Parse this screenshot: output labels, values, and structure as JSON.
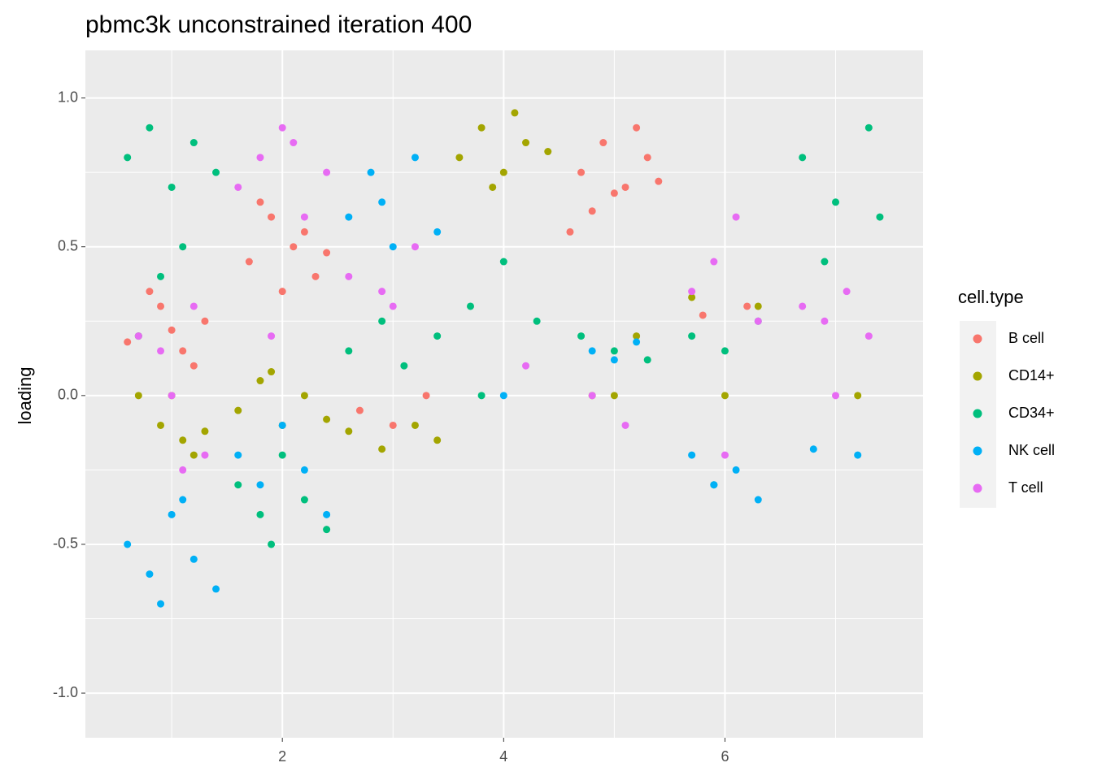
{
  "chart_data": {
    "type": "scatter",
    "title": "pbmc3k unconstrained iteration 400",
    "y_label": "loading",
    "legend_title": "cell.type",
    "xlim": [
      0.22,
      7.79
    ],
    "xticks": [
      2,
      4,
      6
    ],
    "ylim": [
      -1.15,
      1.16
    ],
    "yticks": [
      {
        "value": 1,
        "label": "1.0"
      },
      {
        "value": 0.5,
        "label": "0.5"
      },
      {
        "value": 0,
        "label": "0.0"
      },
      {
        "value": -0.5,
        "label": "-0.5"
      },
      {
        "value": -1,
        "label": "-1.0"
      }
    ],
    "grid": true,
    "legend": "right",
    "series": [
      {
        "name": "B cell",
        "color": "#F8766D",
        "x": [
          0.7,
          0.9,
          1.1,
          1.3,
          0.8,
          1.2,
          1.0,
          0.6,
          1.7,
          1.9,
          2.1,
          2.3,
          1.8,
          2.2,
          2.0,
          2.4,
          2.7,
          3.0,
          3.3,
          4.7,
          4.9,
          5.1,
          5.3,
          4.8,
          5.2,
          5.0,
          4.6,
          5.4,
          6.2,
          5.8
        ],
        "values": [
          0.2,
          0.3,
          0.15,
          0.25,
          0.35,
          0.1,
          0.22,
          0.18,
          0.45,
          0.6,
          0.5,
          0.4,
          0.65,
          0.55,
          0.35,
          0.48,
          -0.05,
          -0.1,
          0,
          0.75,
          0.85,
          0.7,
          0.8,
          0.62,
          0.9,
          0.68,
          0.55,
          0.72,
          0.3,
          0.27
        ]
      },
      {
        "name": "CD14+",
        "color": "#A3A500",
        "x": [
          0.7,
          0.9,
          1.1,
          1.3,
          1.0,
          1.2,
          1.6,
          1.8,
          2.0,
          2.2,
          2.4,
          1.9,
          2.6,
          2.9,
          3.2,
          3.4,
          3.6,
          3.8,
          4.0,
          4.2,
          4.4,
          3.9,
          4.1,
          4.8,
          5.2,
          5.0,
          5.7,
          6.0,
          6.3,
          7.2
        ],
        "values": [
          0,
          -0.1,
          -0.15,
          -0.12,
          0,
          -0.2,
          -0.05,
          0.05,
          -0.1,
          0,
          -0.08,
          0.08,
          -0.12,
          -0.18,
          -0.1,
          -0.15,
          0.8,
          0.9,
          0.75,
          0.85,
          0.82,
          0.7,
          0.95,
          0,
          0.2,
          0,
          0.33,
          0,
          0.3,
          0
        ]
      },
      {
        "name": "CD34+",
        "color": "#00BF7D",
        "x": [
          0.6,
          0.8,
          1.0,
          1.2,
          1.4,
          0.9,
          1.1,
          0.7,
          1.6,
          1.8,
          2.0,
          2.2,
          2.4,
          1.9,
          2.6,
          2.9,
          3.1,
          3.4,
          3.7,
          4.0,
          4.3,
          3.8,
          4.7,
          5.0,
          5.3,
          5.7,
          6.0,
          6.3,
          5.9,
          6.7,
          7.0,
          7.3,
          6.9,
          7.4
        ],
        "values": [
          0.8,
          0.9,
          0.7,
          0.85,
          0.75,
          0.4,
          0.5,
          0.2,
          -0.3,
          -0.4,
          -0.2,
          -0.35,
          -0.45,
          -0.5,
          0.15,
          0.25,
          0.1,
          0.2,
          0.3,
          0.45,
          0.25,
          0,
          0.2,
          0.15,
          0.12,
          0.2,
          0.15,
          0.25,
          -0.3,
          0.8,
          0.65,
          0.9,
          0.45,
          0.6
        ]
      },
      {
        "name": "NK cell",
        "color": "#00B0F6",
        "x": [
          0.6,
          0.8,
          1.0,
          1.2,
          1.4,
          0.9,
          1.1,
          1.6,
          1.8,
          2.0,
          2.2,
          2.4,
          2.6,
          2.8,
          3.0,
          3.2,
          3.4,
          2.9,
          4.0,
          4.8,
          5.0,
          5.2,
          5.7,
          5.9,
          6.1,
          6.3,
          7.2,
          6.8
        ],
        "values": [
          -0.5,
          -0.6,
          -0.4,
          -0.55,
          -0.65,
          -0.7,
          -0.35,
          -0.2,
          -0.3,
          -0.1,
          -0.25,
          -0.4,
          0.6,
          0.75,
          0.5,
          0.8,
          0.55,
          0.65,
          0,
          0.15,
          0.12,
          0.18,
          -0.2,
          -0.3,
          -0.25,
          -0.35,
          -0.2,
          -0.18
        ]
      },
      {
        "name": "T cell",
        "color": "#E76BF3",
        "x": [
          0.7,
          0.9,
          1.1,
          1.3,
          1.0,
          1.2,
          1.6,
          1.8,
          2.0,
          2.2,
          2.4,
          1.9,
          2.1,
          2.6,
          2.9,
          3.2,
          3.0,
          4.2,
          4.8,
          5.1,
          5.7,
          5.9,
          6.1,
          6.3,
          6.0,
          6.7,
          6.9,
          7.1,
          7.3,
          7.0
        ],
        "values": [
          0.2,
          0.15,
          -0.25,
          -0.2,
          0,
          0.3,
          0.7,
          0.8,
          0.9,
          0.6,
          0.75,
          0.2,
          0.85,
          0.4,
          0.35,
          0.5,
          0.3,
          0.1,
          0,
          -0.1,
          0.35,
          0.45,
          0.6,
          0.25,
          -0.2,
          0.3,
          0.25,
          0.35,
          0.2,
          0
        ]
      }
    ]
  }
}
